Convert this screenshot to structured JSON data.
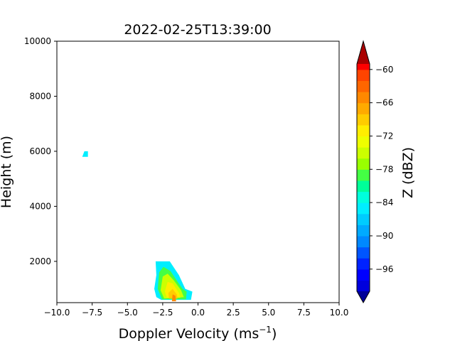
{
  "chart_data": {
    "type": "heatmap",
    "subtype": "filled-contour Doppler spectrogram",
    "title": "2022-02-25T13:39:00",
    "xlabel": "Doppler Velocity (ms",
    "xlabel_superscript": "−1",
    "xlabel_suffix": ")",
    "ylabel": "Height (m)",
    "xlim": [
      -10,
      10
    ],
    "ylim": [
      500,
      10000
    ],
    "x_ticks": [
      -10,
      -7.5,
      -5,
      -2.5,
      0,
      2.5,
      5,
      7.5,
      10
    ],
    "x_tick_labels": [
      "−10.0",
      "−7.5",
      "−5.0",
      "−2.5",
      "0.0",
      "2.5",
      "5.0",
      "7.5",
      "10.0"
    ],
    "y_ticks": [
      2000,
      4000,
      6000,
      8000,
      10000
    ],
    "y_tick_labels": [
      "2000",
      "4000",
      "6000",
      "8000",
      "10000"
    ],
    "grid": false,
    "colorbar": {
      "label": "Z (dBZ)",
      "min": -100,
      "max": -59,
      "step": 2,
      "extend": "both",
      "ticks": [
        -60,
        -66,
        -72,
        -78,
        -84,
        -90,
        -96
      ],
      "tick_labels": [
        "−60",
        "−66",
        "−72",
        "−78",
        "−84",
        "−90",
        "−96"
      ],
      "colors": [
        "#0000dd",
        "#0000ff",
        "#0022ff",
        "#0055ff",
        "#0088ff",
        "#00aaff",
        "#00ccff",
        "#00eeff",
        "#00ffdd",
        "#00ff99",
        "#44ff44",
        "#99ff00",
        "#ccff00",
        "#eeff00",
        "#ffee00",
        "#ffcc00",
        "#ffaa00",
        "#ff8800",
        "#ff6600",
        "#ff4400",
        "#ff0000"
      ],
      "under_color": "#000099",
      "over_color": "#aa0000"
    },
    "regions": [
      {
        "name": "upper-echo",
        "level": -86,
        "polygon": [
          [
            -8.2,
            5800
          ],
          [
            -7.8,
            5800
          ],
          [
            -7.8,
            6000
          ],
          [
            -8.05,
            6000
          ]
        ]
      },
      {
        "name": "lower-echo-outer",
        "level": -86,
        "polygon": [
          [
            -2.6,
            600
          ],
          [
            -2.95,
            700
          ],
          [
            -3.1,
            1000
          ],
          [
            -2.95,
            1500
          ],
          [
            -3.0,
            2000
          ],
          [
            -2.0,
            2000
          ],
          [
            -1.35,
            1500
          ],
          [
            -0.9,
            1000
          ],
          [
            -0.4,
            900
          ],
          [
            -0.5,
            600
          ]
        ]
      },
      {
        "name": "lower-echo-1",
        "level": -80,
        "polygon": [
          [
            -2.55,
            620
          ],
          [
            -2.85,
            1000
          ],
          [
            -2.75,
            1600
          ],
          [
            -2.45,
            1800
          ],
          [
            -1.95,
            1650
          ],
          [
            -1.5,
            1300
          ],
          [
            -1.1,
            1000
          ],
          [
            -0.8,
            900
          ],
          [
            -0.85,
            620
          ]
        ]
      },
      {
        "name": "lower-echo-2",
        "level": -76,
        "polygon": [
          [
            -2.4,
            650
          ],
          [
            -2.65,
            950
          ],
          [
            -2.5,
            1450
          ],
          [
            -2.15,
            1550
          ],
          [
            -1.7,
            1300
          ],
          [
            -1.2,
            950
          ],
          [
            -1.0,
            700
          ]
        ]
      },
      {
        "name": "lower-echo-3",
        "level": -72,
        "polygon": [
          [
            -2.2,
            680
          ],
          [
            -2.35,
            900
          ],
          [
            -2.15,
            1250
          ],
          [
            -1.8,
            1200
          ],
          [
            -1.35,
            850
          ],
          [
            -1.25,
            680
          ]
        ]
      },
      {
        "name": "lower-echo-4",
        "level": -70,
        "polygon": [
          [
            -2.05,
            650
          ],
          [
            -2.1,
            850
          ],
          [
            -1.8,
            1000
          ],
          [
            -1.5,
            800
          ],
          [
            -1.45,
            650
          ]
        ]
      },
      {
        "name": "lower-echo-core",
        "level": -66,
        "polygon": [
          [
            -1.85,
            550
          ],
          [
            -1.8,
            800
          ],
          [
            -1.6,
            750
          ],
          [
            -1.55,
            550
          ]
        ]
      }
    ]
  }
}
